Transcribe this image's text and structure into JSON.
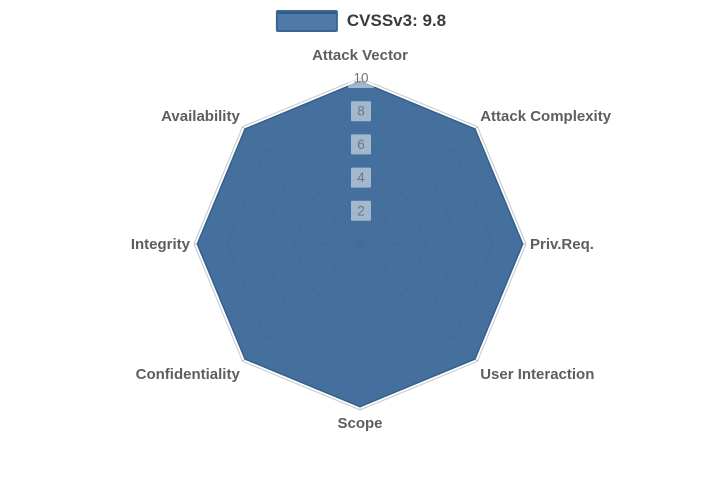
{
  "legend": {
    "label": "CVSSv3: 9.8"
  },
  "chart_data": {
    "type": "radar",
    "title": "",
    "categories": [
      "Attack Vector",
      "Attack Complexity",
      "Priv.Req.",
      "User Interaction",
      "Scope",
      "Confidentiality",
      "Integrity",
      "Availability"
    ],
    "series": [
      {
        "name": "CVSSv3: 9.8",
        "values": [
          9.8,
          9.8,
          9.8,
          9.8,
          9.8,
          9.8,
          9.8,
          9.8
        ]
      }
    ],
    "radial_ticks": [
      2,
      4,
      6,
      8,
      10
    ],
    "range": [
      0,
      10
    ],
    "grid": true,
    "legend_position": "top-center",
    "colors": {
      "series_fill": "rgba(49,97,147,0.9)",
      "series_line": "#31608f",
      "grid_line": "#c6c6c6",
      "axis_label": "#5e5e5e",
      "tick_label": "#747474",
      "tick_box": "rgba(255,255,255,0.5)",
      "legend_text": "#3b3b3b",
      "legend_swatch_fill": "#4e79a8",
      "legend_swatch_border": "#3a678f",
      "legend_swatch_topline": "#2d5a85",
      "background": "#ffffff"
    }
  }
}
